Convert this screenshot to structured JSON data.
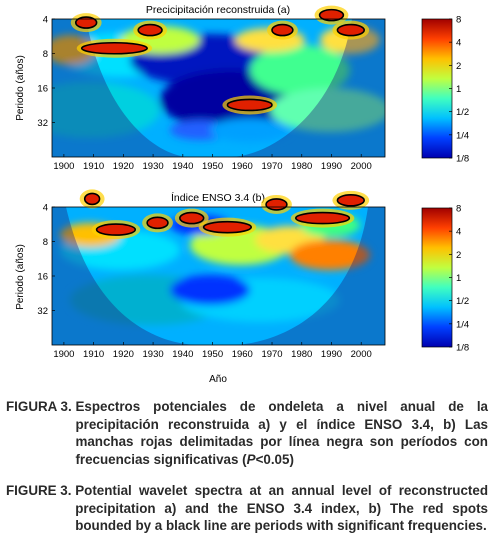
{
  "chart_data": [
    {
      "type": "heatmap",
      "title": "Precicipitación reconstruida (a)",
      "xlabel": "",
      "ylabel": "Periodo (años)",
      "x_range": [
        1896,
        2008
      ],
      "x_ticks": [
        1900,
        1910,
        1920,
        1930,
        1940,
        1950,
        1960,
        1970,
        1980,
        1990,
        2000
      ],
      "y_range_log2_period": [
        2,
        6
      ],
      "y_ticks": [
        4,
        8,
        16,
        32
      ],
      "y_reversed": true,
      "colorbar_ticks": [
        "8",
        "4",
        "2",
        "1",
        "1/2",
        "1/4",
        "1/8"
      ],
      "colormap": [
        "#0000b0",
        "#0040ff",
        "#00c0ff",
        "#40ffc0",
        "#c0ff40",
        "#ffc000",
        "#ff4000",
        "#a00000"
      ],
      "cone_color": "#1e1e78",
      "significant_regions": [
        {
          "years": [
            1904,
            1911
          ],
          "period": 4.3
        },
        {
          "years": [
            1906,
            1928
          ],
          "period": 7.2
        },
        {
          "years": [
            1925,
            1933
          ],
          "period": 5.0
        },
        {
          "years": [
            1970,
            1977
          ],
          "period": 5.0
        },
        {
          "years": [
            1986,
            1994
          ],
          "period": 3.7
        },
        {
          "years": [
            1992,
            2001
          ],
          "period": 5.0
        },
        {
          "years": [
            1955,
            1970
          ],
          "period": 22.5
        }
      ]
    },
    {
      "type": "heatmap",
      "title": "Índice ENSO 3.4 (b)",
      "xlabel": "Año",
      "ylabel": "Periodo (años)",
      "x_range": [
        1896,
        2008
      ],
      "x_ticks": [
        1900,
        1910,
        1920,
        1930,
        1940,
        1950,
        1960,
        1970,
        1980,
        1990,
        2000
      ],
      "y_range_log2_period": [
        2,
        6
      ],
      "y_ticks": [
        4,
        8,
        16,
        32
      ],
      "y_reversed": true,
      "colorbar_ticks": [
        "8",
        "4",
        "2",
        "1",
        "1/2",
        "1/4",
        "1/8"
      ],
      "colormap": [
        "#0000b0",
        "#0040ff",
        "#00c0ff",
        "#40ffc0",
        "#c0ff40",
        "#ffc000",
        "#ff4000",
        "#a00000"
      ],
      "cone_color": "#1e1e78",
      "significant_regions": [
        {
          "years": [
            1907,
            1912
          ],
          "period": 3.4
        },
        {
          "years": [
            1911,
            1924
          ],
          "period": 6.3
        },
        {
          "years": [
            1928,
            1935
          ],
          "period": 5.5
        },
        {
          "years": [
            1939,
            1947
          ],
          "period": 5.0
        },
        {
          "years": [
            1947,
            1963
          ],
          "period": 6.0
        },
        {
          "years": [
            1968,
            1975
          ],
          "period": 3.8
        },
        {
          "years": [
            1978,
            1996
          ],
          "period": 5.0
        },
        {
          "years": [
            1992,
            2001
          ],
          "period": 3.5
        }
      ]
    }
  ],
  "captions": {
    "es_label": "FIGURA 3. ",
    "es_text": "Espectros potenciales de ondeleta a nivel anual de la precipitación reconstruida a) y el índice ENSO 3.4, b) Las manchas rojas delimitadas por línea negra son períodos con frecuencias significativas (",
    "es_italic": "P",
    "es_tail": "<0.05)",
    "en_label": "FIGURE 3. ",
    "en_text": "Potential wavelet spectra at an annual level of reconstructed precipitation a) and the ENSO 3.4 index, b) The red spots bounded by a black line are periods with significant frequencies."
  }
}
